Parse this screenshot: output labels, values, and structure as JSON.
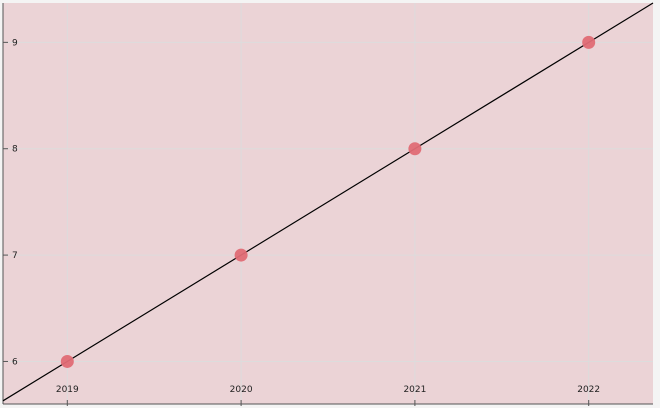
{
  "chart_data": {
    "type": "scatter",
    "title": "",
    "xlabel": "",
    "ylabel": "",
    "x": [
      2019,
      2020,
      2021,
      2022
    ],
    "series": [
      {
        "values": [
          6.0,
          7.0,
          8.0,
          9.0
        ]
      }
    ],
    "trend_line": {
      "slope": 1.0,
      "intercept_at_2019": 6.0
    },
    "x_ticks": [
      "2019",
      "2020",
      "2021",
      "2022"
    ],
    "y_ticks": [
      "6",
      "7",
      "8",
      "9"
    ],
    "xlim": [
      2018.63,
      2022.37
    ],
    "ylim": [
      5.6,
      9.37
    ],
    "grid": true,
    "colors": {
      "plot_background": "#ebd3d6",
      "point": "#e06c75",
      "line": "#000000",
      "grid": "#dcdcdc",
      "axis": "#555555"
    }
  }
}
